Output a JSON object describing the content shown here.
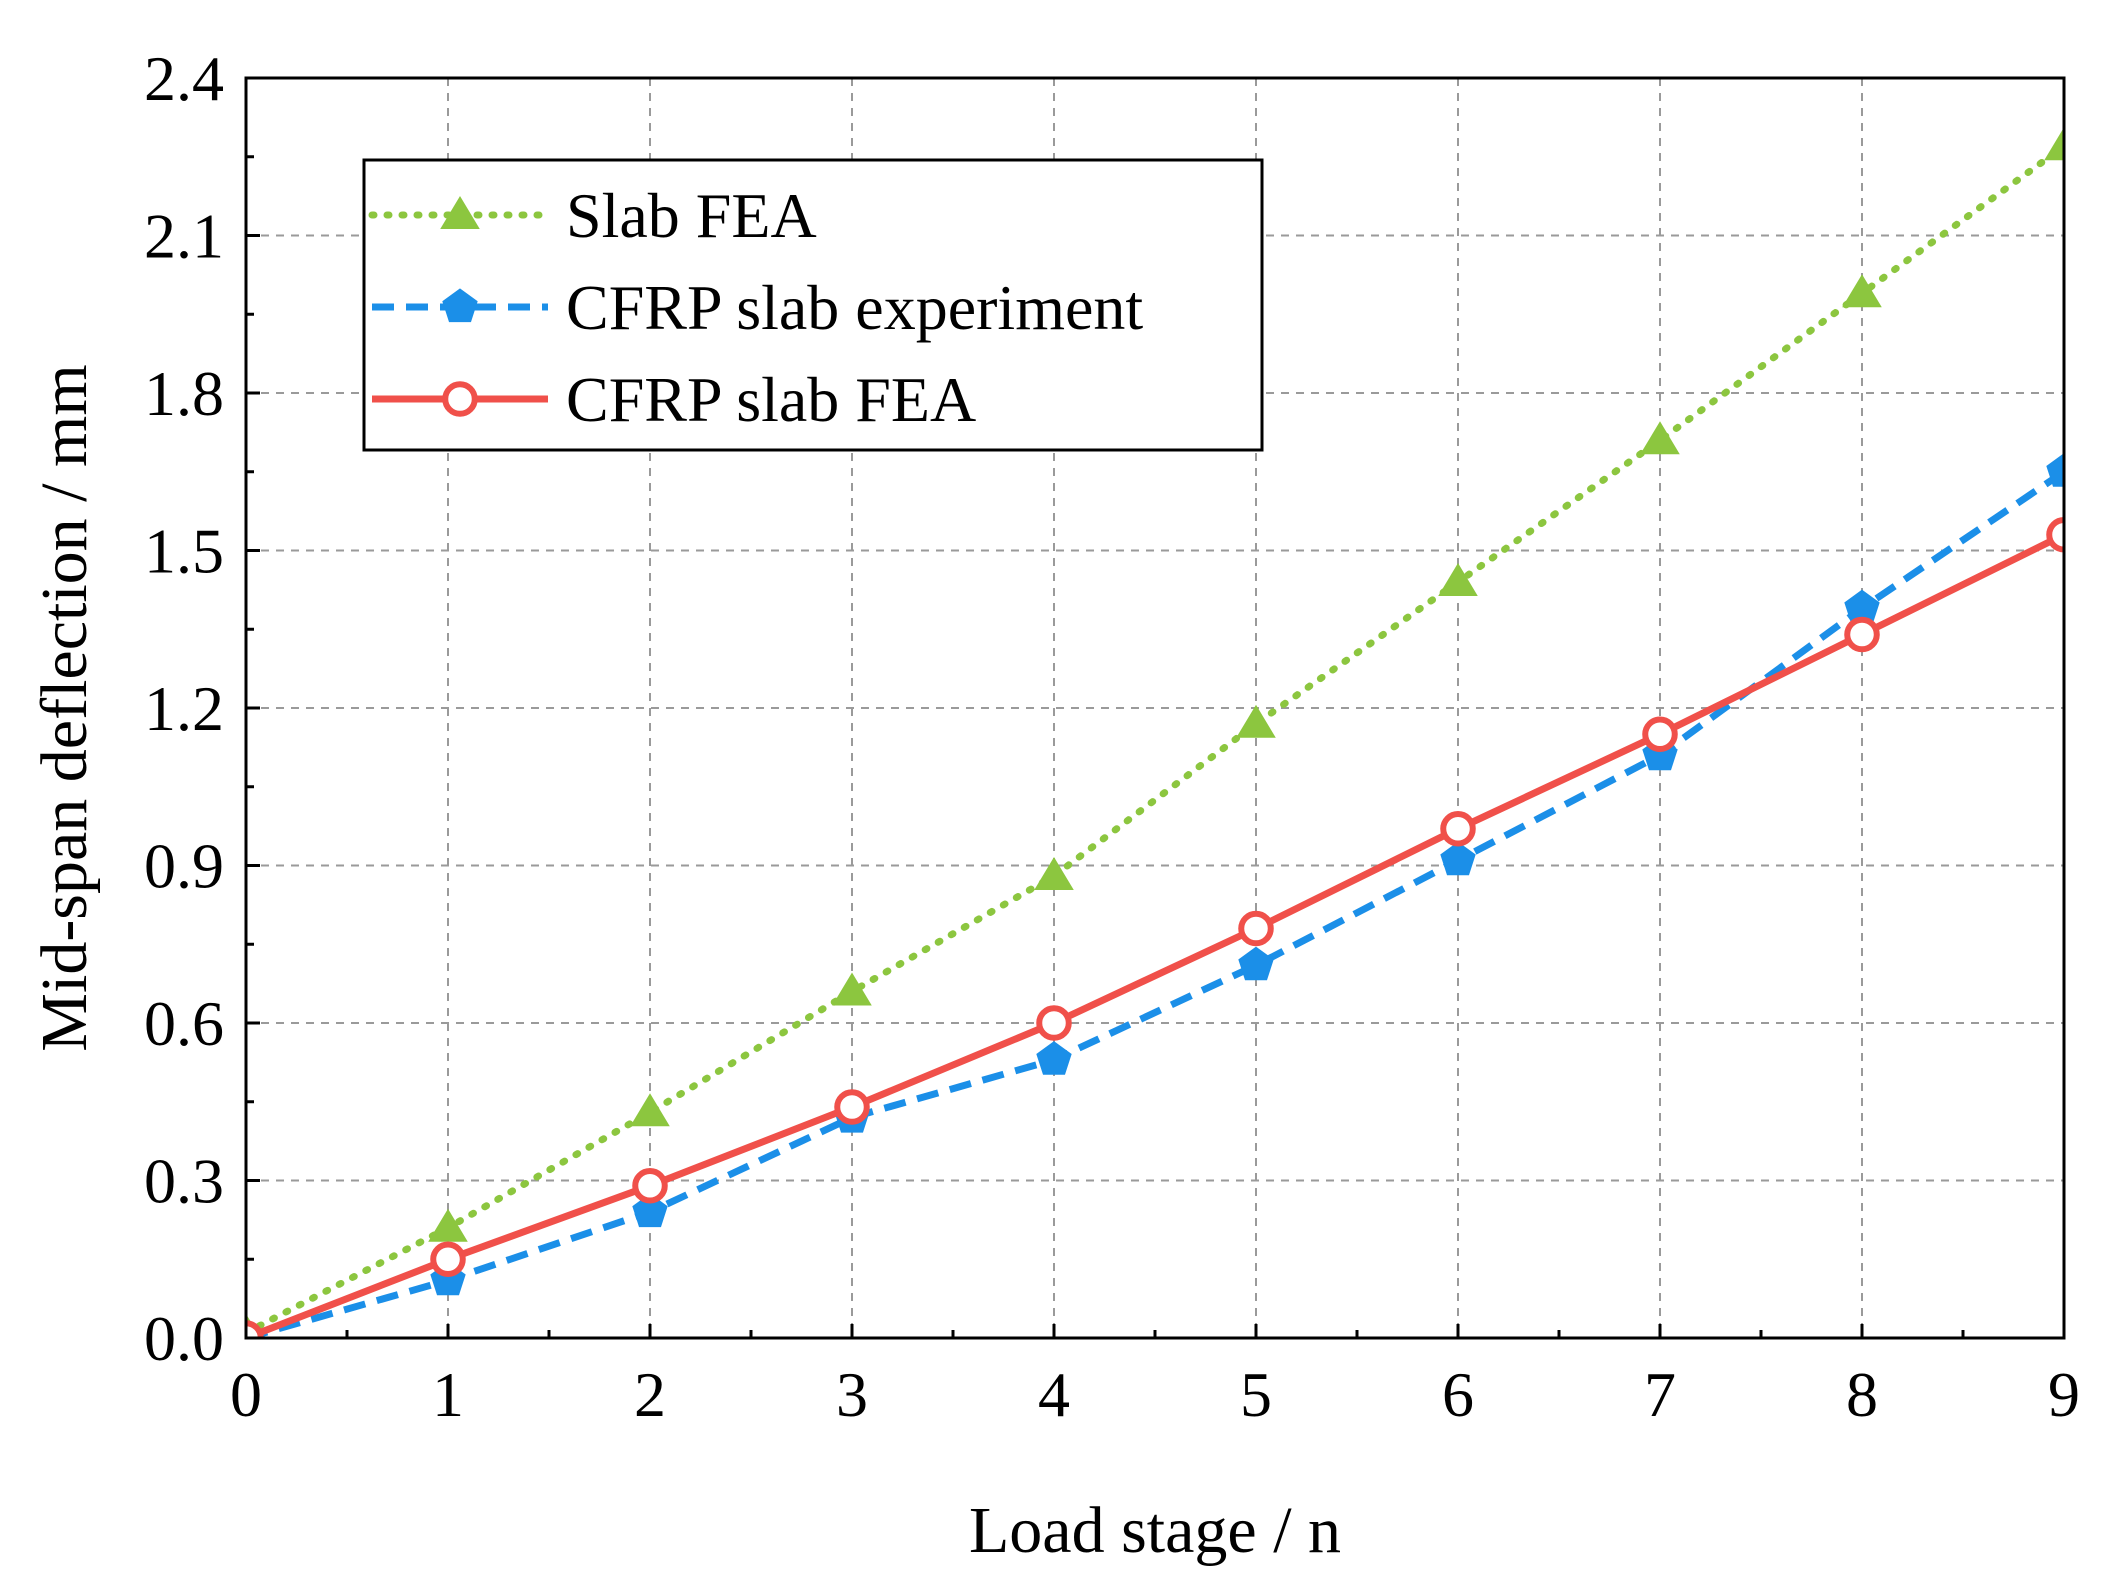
{
  "chart_data": {
    "type": "line",
    "title": "",
    "xlabel": "Load stage / n",
    "ylabel": "Mid-span deflection / mm",
    "xlim": [
      0,
      9
    ],
    "ylim": [
      0,
      2.4
    ],
    "grid": true,
    "legend_position": "top-left",
    "x": [
      0,
      1,
      2,
      3,
      4,
      5,
      6,
      7,
      8,
      9
    ],
    "x_ticks": [
      "0",
      "1",
      "2",
      "3",
      "4",
      "5",
      "6",
      "7",
      "8",
      "9"
    ],
    "y_ticks_values": [
      0,
      0.3,
      0.6,
      0.9,
      1.2,
      1.5,
      1.8,
      2.1,
      2.4
    ],
    "y_ticks": [
      "0.0",
      "0.3",
      "0.6",
      "0.9",
      "1.2",
      "1.5",
      "1.8",
      "2.1",
      "2.4"
    ],
    "series": [
      {
        "name": "Slab FEA",
        "key": "slab-fea",
        "color": "#8cc63f",
        "line_style": "dotted",
        "marker": "triangle",
        "values": [
          0.01,
          0.21,
          0.43,
          0.66,
          0.88,
          1.17,
          1.44,
          1.71,
          1.99,
          2.27
        ]
      },
      {
        "name": "CFRP slab experiment",
        "key": "cfrp-experiment",
        "color": "#1b8fe8",
        "line_style": "dashed",
        "marker": "pentagon",
        "values": [
          0.0,
          0.11,
          0.24,
          0.42,
          0.53,
          0.71,
          0.91,
          1.11,
          1.39,
          1.65
        ]
      },
      {
        "name": "CFRP slab FEA",
        "key": "cfrp-fea",
        "color": "#f0504a",
        "line_style": "solid",
        "marker": "open-circle",
        "values": [
          0.0,
          0.15,
          0.29,
          0.44,
          0.6,
          0.78,
          0.97,
          1.15,
          1.34,
          1.53
        ]
      }
    ]
  }
}
